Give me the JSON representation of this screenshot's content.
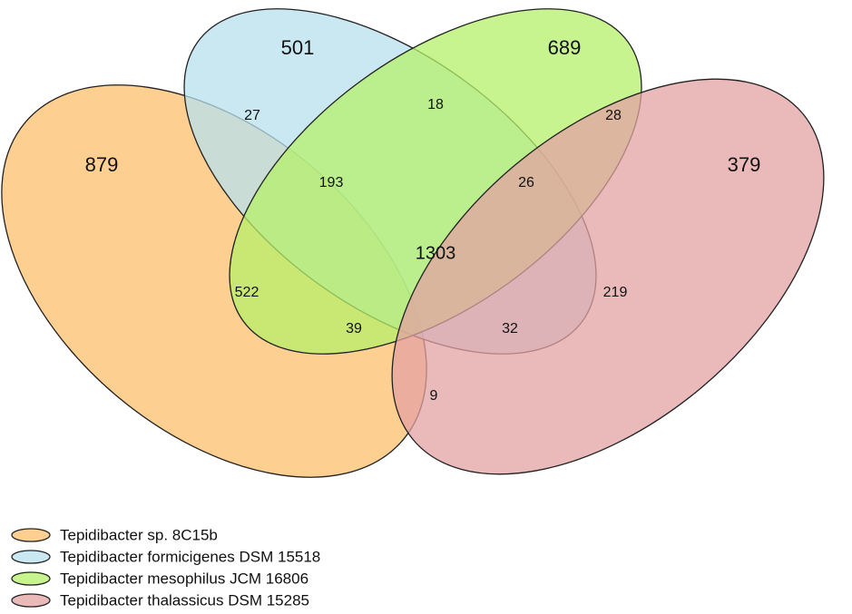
{
  "sets": [
    {
      "name": "Tepidibacter sp. 8C15b",
      "color": "#fcbf6b"
    },
    {
      "name": "Tepidibacter formicigenes DSM 15518",
      "color": "#b8e0ee"
    },
    {
      "name": "Tepidibacter mesophilus JCM 16806",
      "color": "#b6f06a"
    },
    {
      "name": "Tepidibacter thalassicus DSM 15285",
      "color": "#e3a1a3"
    }
  ],
  "regions": [
    {
      "id": "A",
      "value": "879"
    },
    {
      "id": "B",
      "value": "501"
    },
    {
      "id": "C",
      "value": "689"
    },
    {
      "id": "D",
      "value": "379"
    },
    {
      "id": "AB",
      "value": "27"
    },
    {
      "id": "BC",
      "value": "18"
    },
    {
      "id": "CD",
      "value": "28"
    },
    {
      "id": "ABC",
      "value": "193"
    },
    {
      "id": "BCD",
      "value": "26"
    },
    {
      "id": "ABCD",
      "value": "1303"
    },
    {
      "id": "AC",
      "value": "522"
    },
    {
      "id": "BD",
      "value": "219"
    },
    {
      "id": "ACD",
      "value": "39"
    },
    {
      "id": "ABD",
      "value": "32"
    },
    {
      "id": "AD",
      "value": "9"
    }
  ]
}
